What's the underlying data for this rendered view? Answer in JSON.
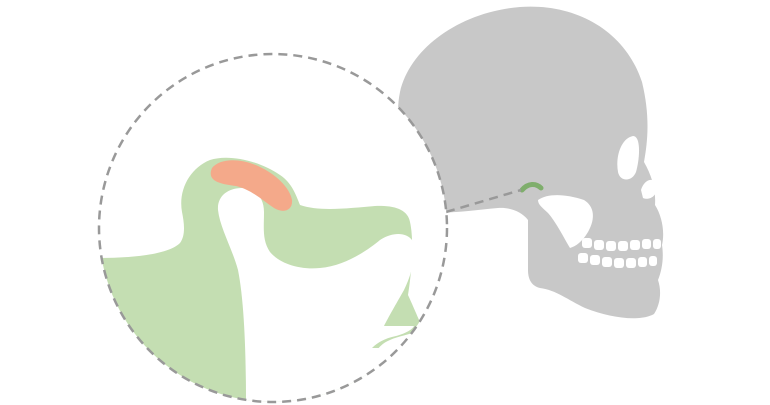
{
  "figure": {
    "subject": "temporomandibular-joint",
    "colors": {
      "skull": "#c8c8c8",
      "bone_tissue": "#c4deb2",
      "articular_disc": "#f4a98a",
      "joint_marker": "#7fae6c",
      "dashed_outline": "#999999",
      "background": "#ffffff"
    },
    "parts": [
      {
        "id": "skull-silhouette",
        "icon": "skull-icon"
      },
      {
        "id": "magnified-joint",
        "icon": "magnifier-circle"
      },
      {
        "id": "mandibular-condyle",
        "icon": "bone-shape"
      },
      {
        "id": "articular-disc",
        "icon": "disc-shape"
      },
      {
        "id": "temporal-bone",
        "icon": "bone-shape"
      }
    ]
  }
}
